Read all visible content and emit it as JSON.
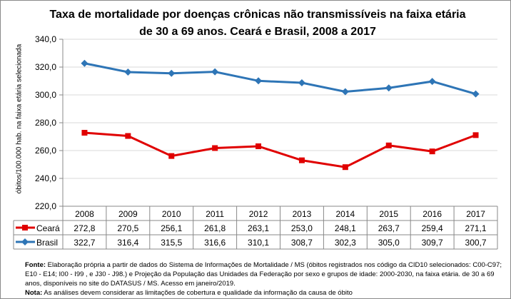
{
  "chart_data": {
    "type": "line",
    "title": "Taxa de mortalidade por doenças crônicas não transmissíveis na faixa etária de 30 a 69 anos. Ceará e Brasil, 2008 a 2017",
    "ylabel": "óbitos/100.000 hab. na faixa etária selecionada",
    "xlabel": "",
    "ylim": [
      220,
      340
    ],
    "yticks": [
      "220,0",
      "240,0",
      "260,0",
      "280,0",
      "300,0",
      "320,0",
      "340,0"
    ],
    "categories": [
      "2008",
      "2009",
      "2010",
      "2011",
      "2012",
      "2013",
      "2014",
      "2015",
      "2016",
      "2017"
    ],
    "grid": "horizontal",
    "legend": "data-table",
    "series": [
      {
        "name": "Ceará",
        "color": "#e00000",
        "marker": "square",
        "values": [
          272.8,
          270.5,
          256.1,
          261.8,
          263.1,
          253.0,
          248.1,
          263.7,
          259.4,
          271.1
        ],
        "labels": [
          "272,8",
          "270,5",
          "256,1",
          "261,8",
          "263,1",
          "253,0",
          "248,1",
          "263,7",
          "259,4",
          "271,1"
        ]
      },
      {
        "name": "Brasil",
        "color": "#2e75b6",
        "marker": "diamond",
        "values": [
          322.7,
          316.4,
          315.5,
          316.6,
          310.1,
          308.7,
          302.3,
          305.0,
          309.7,
          300.7
        ],
        "labels": [
          "322,7",
          "316,4",
          "315,5",
          "316,6",
          "310,1",
          "308,7",
          "302,3",
          "305,0",
          "309,7",
          "300,7"
        ]
      }
    ]
  },
  "notes": {
    "fonte_label": "Fonte:",
    "fonte_text": " Elaboração própria a partir de dados do Sistema de Informações de Mortalidade / MS (óbitos registrados nos código da CID10 selecionados: C00-C97; E10 - E14; I00 - I99 , e J30 - J98.) e Projeção da População das Unidades da Federação por sexo e grupos de idade: 2000-2030, na faixa etária. de 30 a 69 anos, disponíveis no site do DATASUS / MS.  Acesso em janeiro/2019.",
    "nota_label": "Nota:",
    "nota_text": " As análises devem considerar as limitações de cobertura e qualidade da informação da causa de óbito"
  }
}
